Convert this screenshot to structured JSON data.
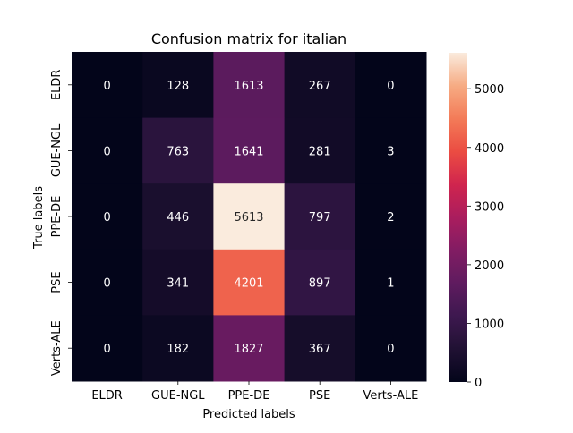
{
  "chart_data": {
    "type": "heatmap",
    "title": "Confusion matrix for italian",
    "xlabel": "Predicted labels",
    "ylabel": "True labels",
    "x_categories": [
      "ELDR",
      "GUE-NGL",
      "PPE-DE",
      "PSE",
      "Verts-ALE"
    ],
    "y_categories": [
      "ELDR",
      "GUE-NGL",
      "PPE-DE",
      "PSE",
      "Verts-ALE"
    ],
    "values": [
      [
        0,
        128,
        1613,
        267,
        0
      ],
      [
        0,
        763,
        1641,
        281,
        3
      ],
      [
        0,
        446,
        5613,
        797,
        2
      ],
      [
        0,
        341,
        4201,
        897,
        1
      ],
      [
        0,
        182,
        1827,
        367,
        0
      ]
    ],
    "colorbar": {
      "colormap": "rocket",
      "range": [
        0,
        5613
      ],
      "ticks": [
        0,
        1000,
        2000,
        3000,
        4000,
        5000
      ]
    }
  }
}
